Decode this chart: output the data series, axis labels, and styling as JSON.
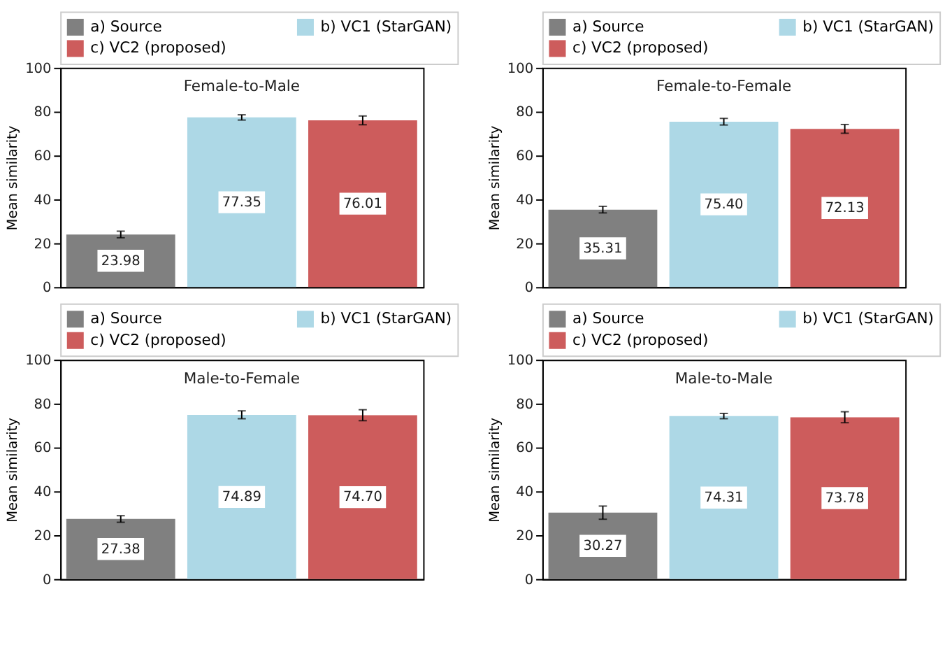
{
  "chart_data": [
    {
      "type": "bar",
      "title": "Female-to-Male",
      "ylabel": "Mean similarity",
      "categories": [
        null
      ],
      "ylim": [
        0,
        100
      ],
      "yticks": [
        0,
        20,
        40,
        60,
        80,
        100
      ],
      "grid": false,
      "legend": "top",
      "tick_labels": "y",
      "series": [
        {
          "name": "a) Source",
          "color": "#808080",
          "values": [
            23.98
          ],
          "value_labels": [
            "23.98"
          ],
          "errors": [
            1.5
          ]
        },
        {
          "name": "b) VC1 (StarGAN)",
          "color": "#add8e6",
          "values": [
            77.35
          ],
          "value_labels": [
            "77.35"
          ],
          "errors": [
            1.2
          ]
        },
        {
          "name": "c) VC2 (proposed)",
          "color": "#cd5c5c",
          "values": [
            76.01
          ],
          "value_labels": [
            "76.01"
          ],
          "errors": [
            2
          ]
        }
      ]
    },
    {
      "type": "bar",
      "title": "Female-to-Female",
      "ylabel": "Mean similarity",
      "categories": [
        null
      ],
      "ylim": [
        0,
        100
      ],
      "yticks": [
        0,
        20,
        40,
        60,
        80,
        100
      ],
      "grid": false,
      "legend": "top",
      "tick_labels": "y",
      "series": [
        {
          "name": "a) Source",
          "color": "#808080",
          "values": [
            35.31
          ],
          "value_labels": [
            "35.31"
          ],
          "errors": [
            1.5
          ]
        },
        {
          "name": "b) VC1 (StarGAN)",
          "color": "#add8e6",
          "values": [
            75.4
          ],
          "value_labels": [
            "75.40"
          ],
          "errors": [
            1.5
          ]
        },
        {
          "name": "c) VC2 (proposed)",
          "color": "#cd5c5c",
          "values": [
            72.13
          ],
          "value_labels": [
            "72.13"
          ],
          "errors": [
            2
          ]
        }
      ]
    },
    {
      "type": "bar",
      "title": "Male-to-Female",
      "ylabel": "Mean similarity",
      "categories": [
        null
      ],
      "ylim": [
        0,
        100
      ],
      "yticks": [
        0,
        20,
        40,
        60,
        80,
        100
      ],
      "grid": false,
      "legend": "top",
      "tick_labels": "y",
      "series": [
        {
          "name": "a) Source",
          "color": "#808080",
          "values": [
            27.38
          ],
          "value_labels": [
            "27.38"
          ],
          "errors": [
            1.5
          ]
        },
        {
          "name": "b) VC1 (StarGAN)",
          "color": "#add8e6",
          "values": [
            74.89
          ],
          "value_labels": [
            "74.89"
          ],
          "errors": [
            1.8
          ]
        },
        {
          "name": "c) VC2 (proposed)",
          "color": "#cd5c5c",
          "values": [
            74.7
          ],
          "value_labels": [
            "74.70"
          ],
          "errors": [
            2.5
          ]
        }
      ]
    },
    {
      "type": "bar",
      "title": "Male-to-Male",
      "ylabel": "Mean similarity",
      "categories": [
        null
      ],
      "ylim": [
        0,
        100
      ],
      "yticks": [
        0,
        20,
        40,
        60,
        80,
        100
      ],
      "grid": false,
      "legend": "top",
      "tick_labels": "y",
      "series": [
        {
          "name": "a) Source",
          "color": "#808080",
          "values": [
            30.27
          ],
          "value_labels": [
            "30.27"
          ],
          "errors": [
            3
          ]
        },
        {
          "name": "b) VC1 (StarGAN)",
          "color": "#add8e6",
          "values": [
            74.31
          ],
          "value_labels": [
            "74.31"
          ],
          "errors": [
            1.2
          ]
        },
        {
          "name": "c) VC2 (proposed)",
          "color": "#cd5c5c",
          "values": [
            73.78
          ],
          "value_labels": [
            "73.78"
          ],
          "errors": [
            2.5
          ]
        }
      ]
    }
  ]
}
